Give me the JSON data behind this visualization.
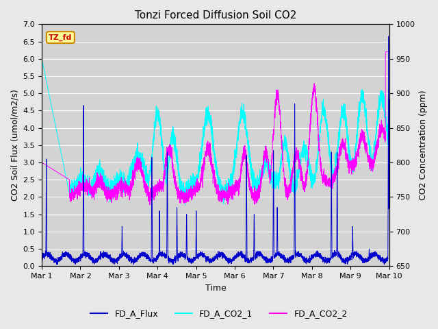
{
  "title": "Tonzi Forced Diffusion Soil CO2",
  "xlabel": "Time",
  "ylabel_left": "CO2 Soil Flux (umol/m2/s)",
  "ylabel_right": "CO2 Concentration (ppm)",
  "ylim_left": [
    0.0,
    7.0
  ],
  "ylim_right": [
    650,
    1000
  ],
  "yticks_left": [
    0.0,
    0.5,
    1.0,
    1.5,
    2.0,
    2.5,
    3.0,
    3.5,
    4.0,
    4.5,
    5.0,
    5.5,
    6.0,
    6.5,
    7.0
  ],
  "yticks_right": [
    650,
    700,
    750,
    800,
    850,
    900,
    950,
    1000
  ],
  "color_flux": "#0000CD",
  "color_co2_1": "#00FFFF",
  "color_co2_2": "#FF00FF",
  "legend_labels": [
    "FD_A_Flux",
    "FD_A_CO2_1",
    "FD_A_CO2_2"
  ],
  "tag_text": "TZ_fd",
  "tag_facecolor": "#FFFF99",
  "tag_edgecolor": "#CC8800",
  "tag_textcolor": "#CC0000",
  "background_color": "#E8E8E8",
  "plot_bg_color": "#D3D3D3",
  "grid_color": "#FFFFFF",
  "xtick_labels": [
    "Mar 1",
    "Mar 2",
    "Mar 3",
    "Mar 4",
    "Mar 5",
    "Mar 6",
    "Mar 7",
    "Mar 8",
    "Mar 9",
    "Mar 10"
  ],
  "days": 9
}
